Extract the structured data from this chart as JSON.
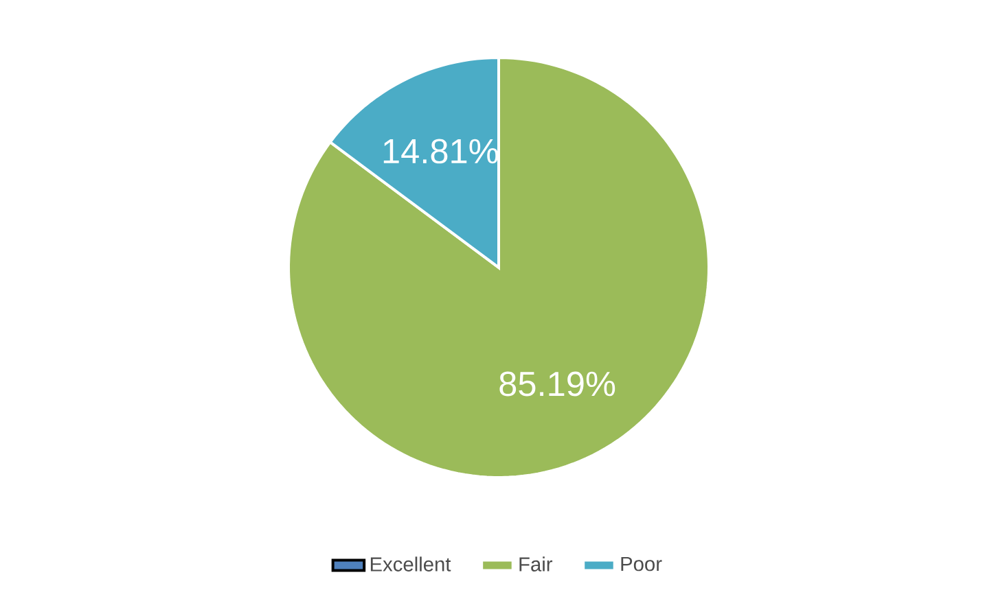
{
  "chart_data": {
    "type": "pie",
    "categories": [
      "Excellent",
      "Fair",
      "Poor"
    ],
    "values": [
      0,
      85.19,
      14.81
    ],
    "colors": [
      "#4f81bd",
      "#9bbb59",
      "#4bacc6"
    ],
    "value_labels": [
      null,
      "85.19%",
      "14.81%"
    ],
    "legend": "bottom"
  }
}
